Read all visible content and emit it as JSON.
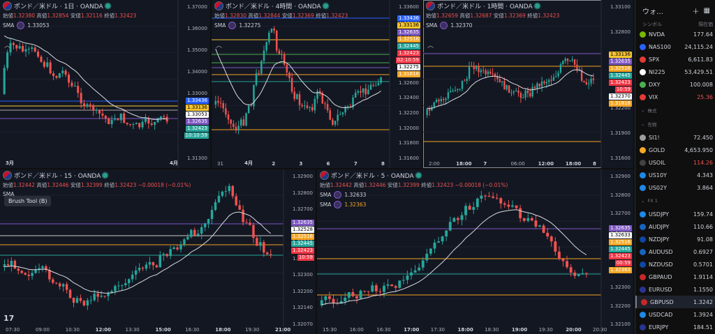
{
  "colors": {
    "bg": "#131722",
    "up": "#26a69a",
    "down": "#ef5350",
    "sma": "#d9dbe0",
    "blue": "#2962ff",
    "yellow": "#f7c531",
    "orange": "#f5a623",
    "purple": "#7e57c2",
    "green": "#26a69a",
    "red": "#f23645"
  },
  "panes": {
    "p1": {
      "title": "ポンド／米ドル · 1日 · OANDA",
      "ohlc": {
        "open_k": "始値",
        "open": "1.32380",
        "high_k": "高値",
        "high": "1.32854",
        "low_k": "安値",
        "low": "1.32116",
        "close_k": "終値",
        "close": "1.32423"
      },
      "sma": {
        "label": "SMA",
        "value": "1.33053"
      },
      "yticks": [
        "1.37000",
        "1.36000",
        "1.35000",
        "1.34000",
        "1.33000",
        "1.32000",
        "1.31800",
        "1.31300"
      ],
      "xticks": [
        "3月",
        "4月"
      ],
      "labels": [
        {
          "text": "1.33436",
          "color": "#2962ff"
        },
        {
          "text": "1.33136",
          "color": "#f7c531"
        },
        {
          "text": "1.33053",
          "color": "#ffffff"
        },
        {
          "text": "1.32635",
          "color": "#7e57c2"
        },
        {
          "text": "1.32423",
          "color": "#26a69a"
        },
        {
          "text": "10:10:59",
          "color": "#26a69a"
        }
      ]
    },
    "p2": {
      "title": "ポンド／米ドル · 4時間 · OANDA",
      "ohlc": {
        "open_k": "始値",
        "open": "1.32830",
        "high_k": "高値",
        "high": "1.32844",
        "low_k": "安値",
        "low": "1.32369",
        "close_k": "終値",
        "close": "1.32423"
      },
      "sma": {
        "label": "SMA",
        "value": "1.32275"
      },
      "yticks": [
        "1.33600",
        "1.33400",
        "1.33200",
        "1.33000",
        "1.32800",
        "1.32600",
        "1.32400",
        "1.32200",
        "1.32000",
        "1.31800",
        "1.31600"
      ],
      "xticks": [
        "31",
        "4月",
        "2",
        "3",
        "6",
        "7",
        "8"
      ],
      "labels": [
        {
          "text": "1.33436",
          "color": "#2962ff"
        },
        {
          "text": "1.33136",
          "color": "#f7c531"
        },
        {
          "text": "1.32635",
          "color": "#7e57c2"
        },
        {
          "text": "1.32516",
          "color": "#f5a623"
        },
        {
          "text": "1.32445",
          "color": "#26a69a"
        },
        {
          "text": "1.32423",
          "color": "#f23645"
        },
        {
          "text": "02:10:59",
          "color": "#f23645"
        },
        {
          "text": "1.32275",
          "color": "#ffffff"
        },
        {
          "text": "1.31818",
          "color": "#f5a623"
        }
      ]
    },
    "p3": {
      "title": "ポンド／米ドル · 1時間 · OANDA",
      "ohlc": {
        "open_k": "始値",
        "open": "1.32659",
        "high_k": "高値",
        "high": "1.32687",
        "low_k": "安値",
        "low": "1.32369",
        "close_k": "終値",
        "close": "1.32423"
      },
      "sma": {
        "label": "SMA",
        "value": "1.32370"
      },
      "yticks": [
        "1.33100",
        "1.32800",
        "1.32600",
        "1.32400",
        "1.32200",
        "1.31900",
        "1.31600"
      ],
      "xticks": [
        "2:00",
        "18:00",
        "7",
        "06:00",
        "12:00",
        "18:00",
        "8"
      ],
      "labels": [
        {
          "text": "1.33136",
          "color": "#f7c531"
        },
        {
          "text": "1.32635",
          "color": "#7e57c2"
        },
        {
          "text": "1.32516",
          "color": "#f5a623"
        },
        {
          "text": "1.32445",
          "color": "#26a69a"
        },
        {
          "text": "1.32423",
          "color": "#f23645"
        },
        {
          "text": "10:59",
          "color": "#f23645"
        },
        {
          "text": "1.32370",
          "color": "#ffffff"
        },
        {
          "text": "1.31818",
          "color": "#f5a623"
        }
      ]
    },
    "p4": {
      "title": "ポンド／米ドル · 15 · OANDA",
      "ohlc": {
        "open_k": "始値",
        "open": "1.32442",
        "high_k": "高値",
        "high": "1.32446",
        "low_k": "安値",
        "low": "1.32399",
        "close_k": "終値",
        "close": "1.32423",
        "change": "−0.00018 (−0.01%)"
      },
      "sma": {
        "label": "SMA"
      },
      "tooltip": "Brush Tool (B)",
      "yticks": [
        "1.32900",
        "1.32800",
        "1.32700",
        "1.32600",
        "1.32500",
        "1.32400",
        "1.32300",
        "1.32200",
        "1.32140",
        "1.32070"
      ],
      "xticks": [
        "07:30",
        "09:00",
        "10:30",
        "12:00",
        "13:30",
        "15:00",
        "16:30",
        "18:00",
        "19:30",
        "21:00"
      ],
      "labels": [
        {
          "text": "1.32635",
          "color": "#7e57c2"
        },
        {
          "text": "1.32528",
          "color": "#ffffff"
        },
        {
          "text": "1.32516",
          "color": "#f5a623"
        },
        {
          "text": "1.32445",
          "color": "#26a69a"
        },
        {
          "text": "1.32423",
          "color": "#f23645"
        },
        {
          "text": "10:59",
          "color": "#f23645"
        }
      ]
    },
    "p5": {
      "title": "ポンド／米ドル · 5 · OANDA",
      "ohlc": {
        "open_k": "始値",
        "open": "1.32442",
        "high_k": "高値",
        "high": "1.32446",
        "low_k": "安値",
        "low": "1.32399",
        "close_k": "終値",
        "close": "1.32423",
        "change": "−0.00018 (−0.01%)"
      },
      "sma": {
        "label": "SMA",
        "value": "1.32633"
      },
      "sma2": {
        "label": "SMA",
        "value": "1.32363"
      },
      "yticks": [
        "1.32900",
        "1.32800",
        "1.32700",
        "1.32600",
        "1.32500",
        "1.32400",
        "1.32300",
        "1.32200",
        "1.32100"
      ],
      "xticks": [
        "15:30",
        "16:00",
        "16:30",
        "17:00",
        "17:30",
        "18:00",
        "18:30",
        "19:00",
        "19:30",
        "20:00",
        "20:30"
      ],
      "labels": [
        {
          "text": "1.32635",
          "color": "#7e57c2"
        },
        {
          "text": "1.32633",
          "color": "#ffffff"
        },
        {
          "text": "1.32516",
          "color": "#f5a623"
        },
        {
          "text": "1.32445",
          "color": "#26a69a"
        },
        {
          "text": "1.32423",
          "color": "#f23645"
        },
        {
          "text": "00:59",
          "color": "#f23645"
        },
        {
          "text": "1.32363",
          "color": "#f5a623"
        }
      ]
    }
  },
  "watchlist": {
    "title": "ウォ…",
    "col_symbol": "シンボル",
    "col_price": "現在価",
    "sections": {
      "s1": "株式",
      "s2": "先物",
      "s3": "FX 1"
    },
    "rows_a": [
      {
        "sym": "NVDA",
        "price": "177.64",
        "color": "#76b900"
      },
      {
        "sym": "NAS100",
        "price": "24,115.24",
        "color": "#2962ff"
      },
      {
        "sym": "SPX",
        "price": "6,611.83",
        "color": "#e53935"
      },
      {
        "sym": "NI225",
        "price": "53,429.51",
        "color": "#fff"
      },
      {
        "sym": "DXY",
        "price": "100.008",
        "color": "#4caf50"
      },
      {
        "sym": "VIX",
        "price": "25.36",
        "color": "#e53935",
        "neg": true
      }
    ],
    "rows_b": [
      {
        "sym": "SI1!",
        "price": "72.450",
        "color": "#9e9e9e"
      },
      {
        "sym": "GOLD",
        "price": "4,653.950",
        "color": "#f9a825"
      },
      {
        "sym": "USOIL",
        "price": "114.26",
        "color": "#424242",
        "neg": true
      },
      {
        "sym": "US10Y",
        "price": "4.343",
        "color": "#1e88e5"
      },
      {
        "sym": "US02Y",
        "price": "3.864",
        "color": "#1e88e5"
      }
    ],
    "rows_c": [
      {
        "sym": "USDJPY",
        "price": "159.74",
        "color": "#1e88e5"
      },
      {
        "sym": "AUDJPY",
        "price": "110.66",
        "color": "#1565c0"
      },
      {
        "sym": "NZDJPY",
        "price": "91.08",
        "color": "#0d47a1"
      },
      {
        "sym": "AUDUSD",
        "price": "0.6927",
        "color": "#1565c0"
      },
      {
        "sym": "NZDUSD",
        "price": "0.5701",
        "color": "#0d47a1"
      },
      {
        "sym": "GBPAUD",
        "price": "1.9114",
        "color": "#c62828"
      },
      {
        "sym": "EURUSD",
        "price": "1.1550",
        "color": "#283593"
      },
      {
        "sym": "GBPUSD",
        "price": "1.3242",
        "color": "#c62828",
        "sel": true
      },
      {
        "sym": "USDCAD",
        "price": "1.3924",
        "color": "#1e88e5"
      },
      {
        "sym": "EURJPY",
        "price": "184.51",
        "color": "#283593"
      }
    ]
  }
}
